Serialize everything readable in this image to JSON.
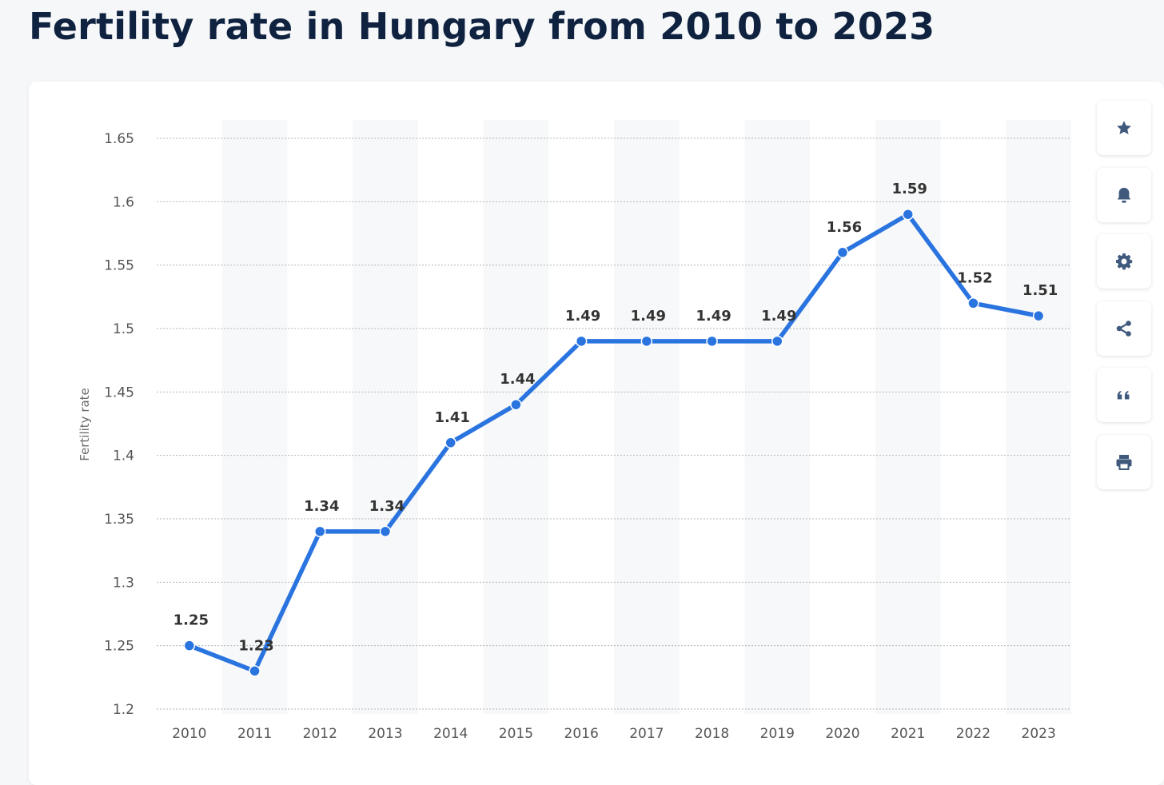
{
  "page": {
    "title": "Fertility rate in Hungary from 2010 to 2023"
  },
  "toolbar": {
    "buttons": [
      {
        "name": "favorite-button",
        "icon": "star-icon"
      },
      {
        "name": "notification-button",
        "icon": "bell-icon"
      },
      {
        "name": "settings-button",
        "icon": "gear-icon"
      },
      {
        "name": "share-button",
        "icon": "share-icon"
      },
      {
        "name": "cite-button",
        "icon": "quote-icon"
      },
      {
        "name": "print-button",
        "icon": "printer-icon"
      }
    ],
    "icon_color": "#3f5a7c"
  },
  "chart_data": {
    "type": "line",
    "title": "",
    "xlabel": "",
    "ylabel": "Fertility rate",
    "categories": [
      "2010",
      "2011",
      "2012",
      "2013",
      "2014",
      "2015",
      "2016",
      "2017",
      "2018",
      "2019",
      "2020",
      "2021",
      "2022",
      "2023"
    ],
    "series": [
      {
        "values": [
          1.25,
          1.23,
          1.34,
          1.34,
          1.41,
          1.44,
          1.49,
          1.49,
          1.49,
          1.49,
          1.56,
          1.59,
          1.52,
          1.51
        ],
        "color": "#2a74e0"
      }
    ],
    "data_labels": [
      "1.25",
      "1.23",
      "1.34",
      "1.34",
      "1.41",
      "1.44",
      "1.49",
      "1.49",
      "1.49",
      "1.49",
      "1.56",
      "1.59",
      "1.52",
      "1.51"
    ],
    "y_ticks": [
      1.2,
      1.25,
      1.3,
      1.35,
      1.4,
      1.45,
      1.5,
      1.55,
      1.6,
      1.65
    ],
    "y_tick_labels": [
      "1.2",
      "1.25",
      "1.3",
      "1.35",
      "1.4",
      "1.45",
      "1.5",
      "1.55",
      "1.6",
      "1.65"
    ],
    "ylim": [
      1.2,
      1.65
    ],
    "grid": true,
    "alternating_column_bands": true,
    "band_color": "#f7f8f9",
    "grid_color": "#b5b5b5"
  }
}
